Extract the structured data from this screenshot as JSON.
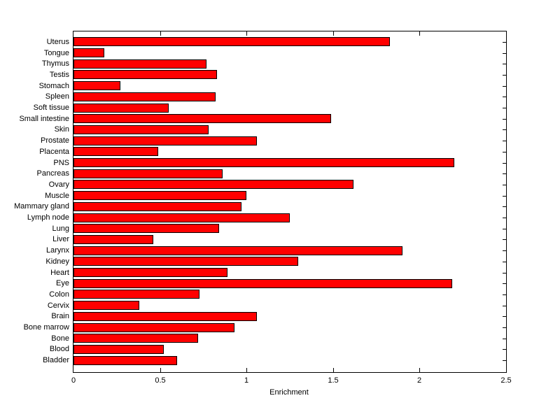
{
  "figure": {
    "background_color": "#FFFFFF",
    "axes_box_color": "#000000",
    "text_color": "#000000"
  },
  "chart_data": {
    "type": "bar",
    "orientation": "horizontal",
    "title": "",
    "xlabel": "Enrichment",
    "ylabel": "",
    "categories": [
      "Uterus",
      "Tongue",
      "Thymus",
      "Testis",
      "Stomach",
      "Spleen",
      "Soft tissue",
      "Small intestine",
      "Skin",
      "Prostate",
      "Placenta",
      "PNS",
      "Pancreas",
      "Ovary",
      "Muscle",
      "Mammary gland",
      "Lymph node",
      "Lung",
      "Liver",
      "Larynx",
      "Kidney",
      "Heart",
      "Eye",
      "Colon",
      "Cervix",
      "Brain",
      "Bone marrow",
      "Bone",
      "Blood",
      "Bladder"
    ],
    "values": [
      1.83,
      0.18,
      0.77,
      0.83,
      0.27,
      0.82,
      0.55,
      1.49,
      0.78,
      1.06,
      0.49,
      2.2,
      0.86,
      1.62,
      1.0,
      0.97,
      1.25,
      0.84,
      0.46,
      1.9,
      1.3,
      0.89,
      2.19,
      0.73,
      0.38,
      1.06,
      0.93,
      0.72,
      0.52,
      0.6
    ],
    "xlim": [
      0,
      2.5
    ],
    "xticks": [
      0,
      0.5,
      1,
      1.5,
      2,
      2.5
    ],
    "xtick_labels": [
      "0",
      "0.5",
      "1",
      "1.5",
      "2",
      "2.5"
    ],
    "bar_color": "#FF0000",
    "bar_edge_color": "#000000",
    "grid": false,
    "legend": "none"
  }
}
